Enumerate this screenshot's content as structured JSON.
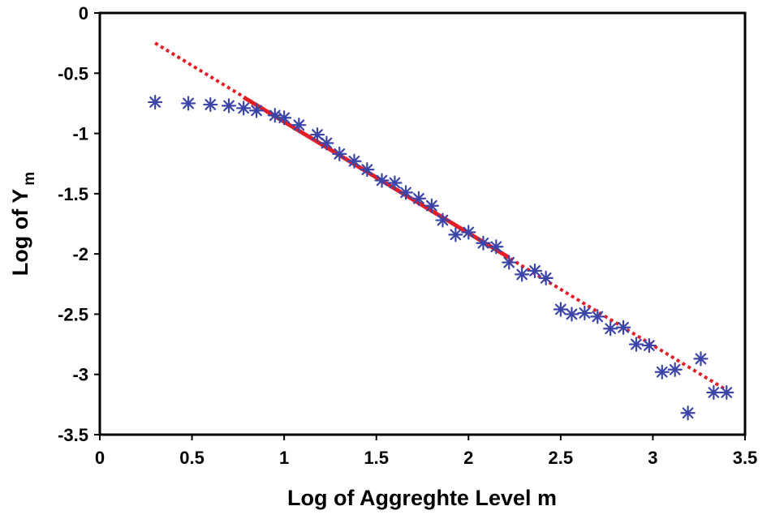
{
  "chart_data": {
    "type": "scatter",
    "title": "",
    "xlabel": "Log of Aggreghte Level m",
    "ylabel_main": "Log of Y",
    "ylabel_sub": "m",
    "xlim": [
      0,
      3.5
    ],
    "ylim": [
      -3.5,
      0
    ],
    "xticks": [
      0,
      0.5,
      1,
      1.5,
      2,
      2.5,
      3,
      3.5
    ],
    "xtick_labels": [
      "0",
      "0.5",
      "1",
      "1.5",
      "2",
      "2.5",
      "3",
      "3.5"
    ],
    "yticks": [
      0,
      -0.5,
      -1,
      -1.5,
      -2,
      -2.5,
      -3,
      -3.5
    ],
    "ytick_labels": [
      "0",
      "-0.5",
      "-1",
      "-1.5",
      "-2",
      "-2.5",
      "-3",
      "-3.5"
    ],
    "grid": false,
    "colors": {
      "points": "#3b45a8",
      "fit": "#e41e26",
      "frame": "#000000"
    },
    "series": [
      {
        "name": "data",
        "marker": "asterisk",
        "x": [
          0.3,
          0.48,
          0.6,
          0.7,
          0.78,
          0.85,
          0.95,
          1.0,
          1.08,
          1.18,
          1.23,
          1.3,
          1.38,
          1.45,
          1.53,
          1.6,
          1.66,
          1.73,
          1.8,
          1.86,
          1.93,
          2.0,
          2.08,
          2.15,
          2.22,
          2.29,
          2.36,
          2.42,
          2.5,
          2.56,
          2.63,
          2.7,
          2.77,
          2.84,
          2.91,
          2.98,
          3.05,
          3.12,
          3.19,
          3.26,
          3.33,
          3.4
        ],
        "y": [
          -0.74,
          -0.75,
          -0.76,
          -0.77,
          -0.79,
          -0.81,
          -0.85,
          -0.87,
          -0.93,
          -1.01,
          -1.08,
          -1.17,
          -1.23,
          -1.3,
          -1.39,
          -1.41,
          -1.49,
          -1.54,
          -1.6,
          -1.72,
          -1.84,
          -1.82,
          -1.91,
          -1.94,
          -2.07,
          -2.17,
          -2.14,
          -2.2,
          -2.46,
          -2.5,
          -2.49,
          -2.52,
          -2.62,
          -2.61,
          -2.75,
          -2.76,
          -2.98,
          -2.96,
          -3.32,
          -2.87,
          -3.15,
          -3.15
        ]
      },
      {
        "name": "fit (solid)",
        "style": "solid",
        "x": [
          0.78,
          2.22
        ],
        "y": [
          -0.7,
          -2.03
        ]
      },
      {
        "name": "fit (dotted extension)",
        "style": "dotted",
        "x": [
          0.3,
          3.4
        ],
        "y": [
          -0.25,
          -3.13
        ]
      }
    ]
  }
}
